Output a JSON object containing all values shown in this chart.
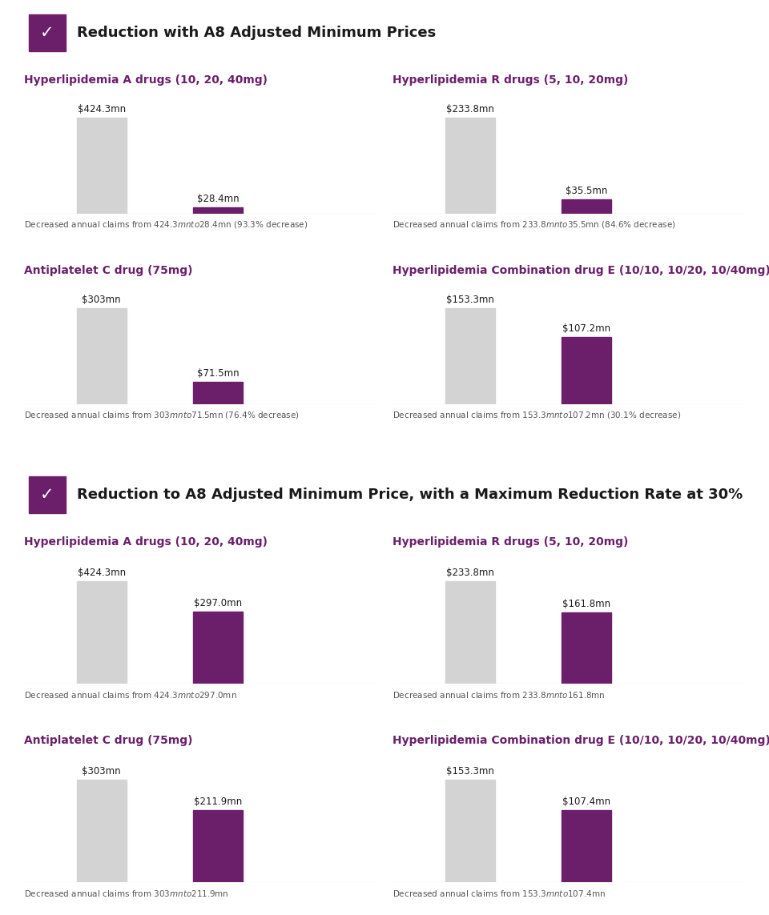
{
  "section1_title": "Reduction with A8 Adjusted Minimum Prices",
  "section2_title": "Reduction to A8 Adjusted Minimum Price, with a Maximum Reduction Rate at 30%",
  "purple": "#6B1F6B",
  "light_gray_bar": "#D3D3D3",
  "bg_color": "#ffffff",
  "header_bg": "#f0f0f0",
  "border_color": "#cccccc",
  "text_dark": "#1a1a1a",
  "text_gray": "#555555",
  "charts": [
    {
      "section": 0,
      "row": 0,
      "col": 0,
      "title": "Hyperlipidemia A drugs (10, 20, 40mg)",
      "before": 424.3,
      "after": 28.4,
      "before_label": "$424.3mn",
      "after_label": "$28.4mn",
      "note": "Decreased annual claims from $424.3mn to $28.4mn (93.3% decrease)"
    },
    {
      "section": 0,
      "row": 0,
      "col": 1,
      "title": "Hyperlipidemia R drugs (5, 10, 20mg)",
      "before": 233.8,
      "after": 35.5,
      "before_label": "$233.8mn",
      "after_label": "$35.5mn",
      "note": "Decreased annual claims from $233.8mn to $35.5mn (84.6% decrease)"
    },
    {
      "section": 0,
      "row": 1,
      "col": 0,
      "title": "Antiplatelet C drug (75mg)",
      "before": 303.0,
      "after": 71.5,
      "before_label": "$303mn",
      "after_label": "$71.5mn",
      "note": "Decreased annual claims from $303mn to $71.5mn (76.4% decrease)"
    },
    {
      "section": 0,
      "row": 1,
      "col": 1,
      "title": "Hyperlipidemia Combination drug E (10/10, 10/20, 10/40mg)",
      "before": 153.3,
      "after": 107.2,
      "before_label": "$153.3mn",
      "after_label": "$107.2mn",
      "note": "Decreased annual claims from $153.3mn to $107.2mn (30.1% decrease)"
    },
    {
      "section": 1,
      "row": 0,
      "col": 0,
      "title": "Hyperlipidemia A drugs (10, 20, 40mg)",
      "before": 424.3,
      "after": 297.0,
      "before_label": "$424.3mn",
      "after_label": "$297.0mn",
      "note": "Decreased annual claims from $424.3mn to $297.0mn"
    },
    {
      "section": 1,
      "row": 0,
      "col": 1,
      "title": "Hyperlipidemia R drugs (5, 10, 20mg)",
      "before": 233.8,
      "after": 161.8,
      "before_label": "$233.8mn",
      "after_label": "$161.8mn",
      "note": "Decreased annual claims from $233.8mn to $161.8mn"
    },
    {
      "section": 1,
      "row": 1,
      "col": 0,
      "title": "Antiplatelet C drug (75mg)",
      "before": 303.0,
      "after": 211.9,
      "before_label": "$303mn",
      "after_label": "$211.9mn",
      "note": "Decreased annual claims from $303mn to $211.9mn"
    },
    {
      "section": 1,
      "row": 1,
      "col": 1,
      "title": "Hyperlipidemia Combination drug E (10/10, 10/20, 10/40mg)",
      "before": 153.3,
      "after": 107.4,
      "before_label": "$153.3mn",
      "after_label": "$107.4mn",
      "note": "Decreased annual claims from $153.3mn to $107.4mn"
    }
  ]
}
